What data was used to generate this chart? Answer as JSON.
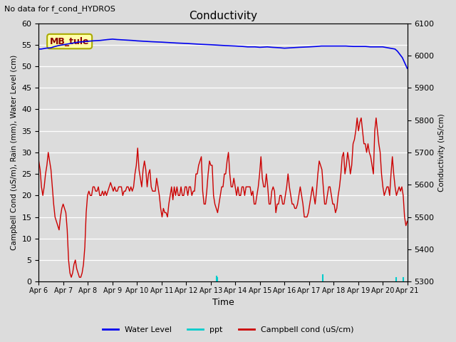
{
  "title": "Conductivity",
  "top_left_text": "No data for f_cond_HYDROS",
  "annotation_box": "MB_tule",
  "xlabel": "Time",
  "ylabel_left": "Campbell Cond (uS/m), Rain (mm), Water Level (cm)",
  "ylabel_right": "Conductivity (uS/cm)",
  "ylim_left": [
    0,
    60
  ],
  "ylim_right": [
    5300,
    6100
  ],
  "x_tick_labels": [
    "Apr 6",
    "Apr 7",
    "Apr 8",
    "Apr 9",
    "Apr 10",
    "Apr 11",
    "Apr 12",
    "Apr 13",
    "Apr 14",
    "Apr 15",
    "Apr 16",
    "Apr 17",
    "Apr 18",
    "Apr 19",
    "Apr 20",
    "Apr 21"
  ],
  "background_color": "#dcdcdc",
  "water_level_color": "#0000ee",
  "ppt_color": "#00cccc",
  "campbell_color": "#cc0000",
  "water_level_x": [
    0,
    0.1,
    0.2,
    0.3,
    0.5,
    0.6,
    0.8,
    1.0,
    1.2,
    1.4,
    1.5,
    1.6,
    1.8,
    2.0,
    2.2,
    2.5,
    2.8,
    3.0,
    3.2,
    3.5,
    3.8,
    4.0,
    4.3,
    4.6,
    5.0,
    5.3,
    5.6,
    6.0,
    6.3,
    6.6,
    7.0,
    7.3,
    7.6,
    8.0,
    8.3,
    8.5,
    8.8,
    9.0,
    9.3,
    9.5,
    9.8,
    10.0,
    10.3,
    10.6,
    11.0,
    11.3,
    11.5,
    11.8,
    12.0,
    12.3,
    12.5,
    12.8,
    13.0,
    13.3,
    13.5,
    13.8,
    14.0,
    14.1,
    14.2,
    14.3,
    14.5,
    14.6,
    14.8,
    15.0
  ],
  "water_level_y": [
    54.0,
    54.0,
    54.1,
    54.2,
    54.3,
    54.5,
    54.8,
    55.0,
    55.2,
    55.4,
    55.5,
    55.6,
    55.7,
    55.8,
    55.9,
    56.0,
    56.2,
    56.3,
    56.2,
    56.1,
    56.0,
    55.9,
    55.8,
    55.7,
    55.6,
    55.5,
    55.4,
    55.3,
    55.2,
    55.1,
    55.0,
    54.9,
    54.8,
    54.7,
    54.6,
    54.5,
    54.5,
    54.4,
    54.5,
    54.4,
    54.3,
    54.2,
    54.3,
    54.4,
    54.5,
    54.6,
    54.7,
    54.7,
    54.7,
    54.7,
    54.7,
    54.6,
    54.6,
    54.6,
    54.5,
    54.5,
    54.5,
    54.4,
    54.3,
    54.2,
    54.0,
    53.5,
    52.0,
    49.5
  ],
  "ppt_spikes_x": [
    7.25,
    7.28,
    11.55,
    14.55,
    14.85
  ],
  "ppt_spikes_h": [
    1.2,
    0.8,
    1.5,
    0.8,
    0.8
  ],
  "campbell_y": [
    28,
    26,
    22,
    20,
    22,
    25,
    27,
    30,
    28,
    26,
    22,
    18,
    15,
    14,
    13,
    12,
    15,
    17,
    18,
    17,
    16,
    12,
    5,
    2,
    1,
    2,
    4,
    5,
    3,
    2,
    1,
    1,
    2,
    4,
    8,
    16,
    20,
    21,
    20,
    20,
    22,
    22,
    21,
    21,
    22,
    20,
    20,
    21,
    20,
    21,
    20,
    21,
    22,
    23,
    22,
    21,
    22,
    21,
    21,
    22,
    22,
    22,
    20,
    21,
    21,
    22,
    22,
    21,
    22,
    21,
    22,
    25,
    27,
    31,
    26,
    24,
    22,
    26,
    28,
    26,
    22,
    25,
    26,
    22,
    21,
    21,
    21,
    24,
    22,
    20,
    17,
    15,
    17,
    16,
    16,
    15,
    18,
    20,
    22,
    19,
    22,
    20,
    22,
    20,
    20,
    22,
    20,
    20,
    22,
    22,
    20,
    22,
    22,
    20,
    21,
    21,
    25,
    25,
    27,
    28,
    29,
    21,
    18,
    18,
    21,
    25,
    28,
    27,
    27,
    20,
    18,
    17,
    16,
    18,
    20,
    22,
    22,
    25,
    25,
    28,
    30,
    25,
    22,
    22,
    24,
    22,
    20,
    22,
    20,
    20,
    22,
    22,
    20,
    22,
    22,
    22,
    22,
    20,
    21,
    18,
    18,
    20,
    22,
    25,
    29,
    24,
    22,
    22,
    25,
    22,
    18,
    18,
    21,
    22,
    21,
    16,
    18,
    18,
    20,
    20,
    18,
    18,
    20,
    22,
    25,
    22,
    20,
    18,
    18,
    17,
    17,
    18,
    20,
    22,
    20,
    18,
    15,
    15,
    15,
    16,
    18,
    20,
    22,
    20,
    18,
    21,
    25,
    28,
    27,
    26,
    22,
    18,
    18,
    20,
    22,
    22,
    20,
    18,
    18,
    16,
    17,
    20,
    22,
    25,
    29,
    30,
    25,
    27,
    30,
    28,
    25,
    27,
    32,
    33,
    35,
    38,
    35,
    37,
    38,
    35,
    32,
    32,
    30,
    32,
    30,
    29,
    27,
    25,
    35,
    38,
    35,
    32,
    30,
    25,
    22,
    20,
    21,
    22,
    22,
    20,
    25,
    29,
    25,
    22,
    20,
    21,
    22,
    21,
    22,
    20,
    15,
    13,
    14
  ]
}
